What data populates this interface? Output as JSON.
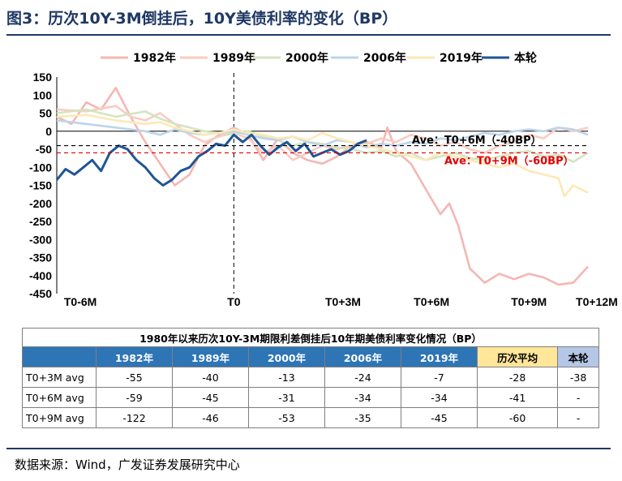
{
  "title": "图3：历次10Y-3M倒挂后，10Y美债利率的变化（BP）",
  "source": "数据来源：Wind，广发证券发展研究中心",
  "chart_data": {
    "type": "line",
    "legend": [
      "1982年",
      "1989年",
      "2000年",
      "2006年",
      "2019年",
      "本轮"
    ],
    "colors": {
      "1982年": "#f4b7b2",
      "1989年": "#f9ccc2",
      "2000年": "#d3e4c2",
      "2006年": "#bdd4ea",
      "2019年": "#fce9b6",
      "本轮": "#1f5596"
    },
    "ylim": [
      -450,
      150
    ],
    "yticks": [
      150,
      100,
      50,
      0,
      -50,
      -100,
      -150,
      -200,
      -250,
      -300,
      -350,
      -400,
      -450
    ],
    "xlabels": [
      "T0-6M",
      "T0",
      "T0+3M",
      "T0+6M",
      "T0+9M",
      "T0+12M"
    ],
    "xlim": [
      -6,
      12
    ],
    "series": [
      {
        "name": "1982年",
        "x": [
          -6,
          -5.5,
          -5,
          -4.5,
          -4,
          -3.5,
          -3,
          -2.5,
          -2,
          -1.5,
          -1,
          -0.5,
          0,
          0.5,
          1,
          1.5,
          2,
          2.5,
          3,
          3.5,
          4,
          4.5,
          5,
          5.2,
          5.5,
          6,
          6.5,
          7,
          7.3,
          7.6,
          8,
          8.5,
          9,
          9.5,
          10,
          10.5,
          11,
          11.5,
          12
        ],
        "y": [
          40,
          20,
          80,
          60,
          120,
          40,
          -30,
          -90,
          -150,
          -120,
          -40,
          -10,
          10,
          -10,
          -80,
          -20,
          -60,
          -80,
          -90,
          -70,
          -40,
          -30,
          -45,
          10,
          -55,
          -90,
          -160,
          -230,
          -200,
          -260,
          -380,
          -420,
          -395,
          -410,
          -395,
          -405,
          -425,
          -420,
          -375
        ]
      },
      {
        "name": "1989年",
        "x": [
          -6,
          -5,
          -4,
          -3.5,
          -3,
          -2.5,
          -2,
          -1.5,
          -1,
          -0.5,
          0,
          0.5,
          1,
          1.5,
          2,
          2.5,
          3,
          3.5,
          4,
          4.5,
          5,
          5.5,
          6,
          6.5,
          7,
          7.5,
          8,
          8.5,
          9,
          9.5,
          10,
          10.5,
          11,
          11.5,
          12
        ],
        "y": [
          60,
          55,
          70,
          40,
          30,
          50,
          20,
          -10,
          -30,
          -15,
          -5,
          -20,
          -60,
          -40,
          -80,
          -60,
          -40,
          -50,
          -40,
          -35,
          -20,
          -30,
          -10,
          -20,
          -40,
          -30,
          -50,
          -60,
          -40,
          -30,
          -10,
          -20,
          10,
          0,
          10
        ]
      },
      {
        "name": "2000年",
        "x": [
          -6,
          -5,
          -4,
          -3,
          -2.5,
          -2,
          -1.5,
          -1,
          -0.5,
          0,
          0.5,
          1,
          1.5,
          2,
          2.5,
          3,
          3.5,
          4,
          4.5,
          5,
          5.5,
          6,
          6.5,
          7,
          7.5,
          8,
          8.5,
          9,
          9.5,
          10,
          10.5,
          11,
          11.5,
          12
        ],
        "y": [
          50,
          60,
          40,
          55,
          35,
          20,
          10,
          0,
          -5,
          -10,
          0,
          -15,
          -25,
          -40,
          -30,
          -35,
          -45,
          -50,
          -60,
          -55,
          -70,
          -60,
          -80,
          -70,
          -60,
          -75,
          -80,
          -70,
          -60,
          -55,
          -70,
          -65,
          -85,
          -60
        ]
      },
      {
        "name": "2006年",
        "x": [
          -6,
          -5,
          -4,
          -3,
          -2.5,
          -2,
          -1.5,
          -1,
          -0.5,
          0,
          0.5,
          1,
          1.5,
          2,
          2.5,
          3,
          3.5,
          4,
          4.5,
          5,
          5.5,
          6,
          6.5,
          7,
          7.5,
          8,
          8.5,
          9,
          9.5,
          10,
          10.5,
          11,
          11.5,
          12
        ],
        "y": [
          30,
          20,
          10,
          0,
          -10,
          5,
          -5,
          -10,
          -5,
          0,
          -10,
          -20,
          -25,
          -15,
          -30,
          -40,
          -25,
          -30,
          -45,
          -35,
          -40,
          -30,
          -35,
          -20,
          -25,
          -15,
          -5,
          -10,
          0,
          5,
          0,
          10,
          5,
          -10
        ]
      },
      {
        "name": "2019年",
        "x": [
          -6,
          -5,
          -4,
          -3,
          -2.5,
          -2,
          -1.5,
          -1,
          -0.5,
          0,
          0.5,
          1,
          1.5,
          2,
          2.5,
          3,
          3.5,
          4,
          4.5,
          5,
          5.5,
          6,
          6.5,
          7,
          7.5,
          8,
          8.5,
          9,
          9.5,
          10,
          10.5,
          11,
          11.2,
          11.5,
          12
        ],
        "y": [
          40,
          45,
          30,
          20,
          25,
          10,
          0,
          -10,
          -5,
          5,
          -5,
          -10,
          -20,
          -15,
          -25,
          -5,
          -20,
          -30,
          -40,
          -50,
          -60,
          -70,
          -80,
          -60,
          -70,
          -80,
          -90,
          -100,
          -90,
          -110,
          -120,
          -130,
          -180,
          -150,
          -170
        ]
      },
      {
        "name": "本轮",
        "x": [
          -6,
          -5.7,
          -5.4,
          -5.1,
          -4.8,
          -4.5,
          -4.2,
          -3.9,
          -3.6,
          -3.3,
          -3,
          -2.7,
          -2.4,
          -2.1,
          -1.8,
          -1.5,
          -1.2,
          -0.9,
          -0.6,
          -0.3,
          0,
          0.3,
          0.6,
          0.9,
          1.2,
          1.5,
          1.8,
          2.1,
          2.4,
          2.7,
          3,
          3.3,
          3.6,
          3.9,
          4.2,
          4.5
        ],
        "y": [
          -135,
          -105,
          -120,
          -100,
          -80,
          -110,
          -60,
          -40,
          -50,
          -80,
          -100,
          -130,
          -150,
          -135,
          -110,
          -100,
          -70,
          -55,
          -35,
          -40,
          -10,
          -30,
          -10,
          -40,
          -65,
          -45,
          -30,
          -55,
          -35,
          -70,
          -60,
          -50,
          -65,
          -55,
          -35,
          -25
        ]
      }
    ],
    "ref_lines": [
      {
        "label": "Ave：T0+6M（-40BP）",
        "value": -40,
        "color": "#000000"
      },
      {
        "label": "Ave：T0+9M（-60BP）",
        "value": -60,
        "color": "#e00000"
      }
    ]
  },
  "table": {
    "caption": "1980年以来历次10Y-3M期限利差倒挂后10年期美债利率变化情况（BP）",
    "headers": [
      "1982年",
      "1989年",
      "2000年",
      "2006年",
      "2019年",
      "历次平均",
      "本轮"
    ],
    "rows": [
      {
        "label": "T0+3M avg",
        "values": [
          "-55",
          "-40",
          "-13",
          "-24",
          "-7",
          "-28",
          "-38"
        ]
      },
      {
        "label": "T0+6M avg",
        "values": [
          "-59",
          "-45",
          "-31",
          "-34",
          "-34",
          "-41",
          "-"
        ]
      },
      {
        "label": "T0+9M avg",
        "values": [
          "-122",
          "-46",
          "-53",
          "-35",
          "-45",
          "-60",
          "-"
        ]
      }
    ]
  }
}
